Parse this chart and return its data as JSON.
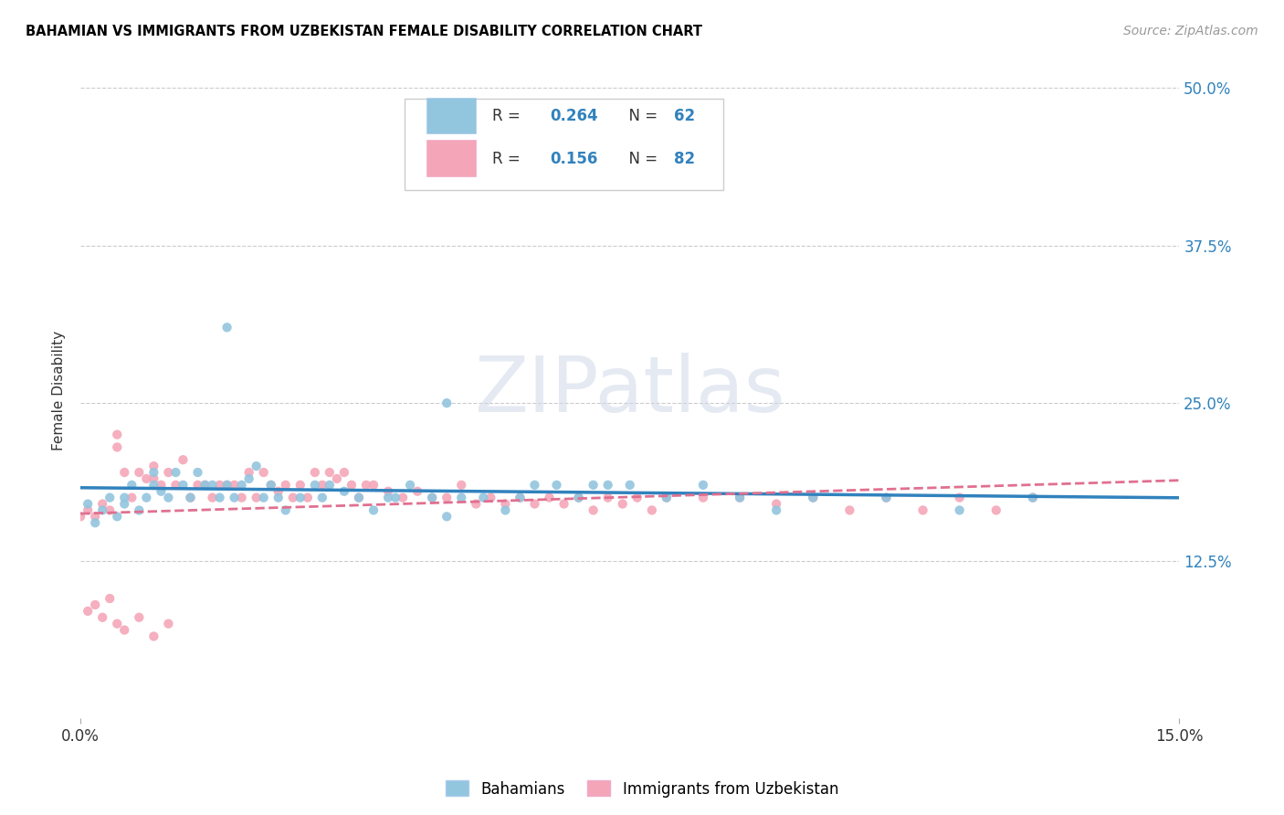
{
  "title": "BAHAMIAN VS IMMIGRANTS FROM UZBEKISTAN FEMALE DISABILITY CORRELATION CHART",
  "source": "Source: ZipAtlas.com",
  "ylabel_label": "Female Disability",
  "xlim": [
    0.0,
    0.15
  ],
  "ylim": [
    0.0,
    0.52
  ],
  "color_blue": "#92c5de",
  "color_pink": "#f4a6b8",
  "color_blue_line": "#3182bd",
  "color_pink_line": "#e07090",
  "watermark": "ZIPatlas",
  "bahamians_x": [
    0.001,
    0.002,
    0.003,
    0.004,
    0.005,
    0.006,
    0.006,
    0.007,
    0.008,
    0.009,
    0.01,
    0.01,
    0.011,
    0.012,
    0.013,
    0.014,
    0.015,
    0.016,
    0.017,
    0.018,
    0.019,
    0.02,
    0.021,
    0.022,
    0.023,
    0.024,
    0.025,
    0.026,
    0.027,
    0.028,
    0.03,
    0.032,
    0.033,
    0.034,
    0.036,
    0.038,
    0.04,
    0.042,
    0.043,
    0.045,
    0.048,
    0.05,
    0.052,
    0.055,
    0.058,
    0.06,
    0.062,
    0.065,
    0.068,
    0.07,
    0.072,
    0.075,
    0.08,
    0.085,
    0.09,
    0.095,
    0.1,
    0.11,
    0.12,
    0.13,
    0.05,
    0.02
  ],
  "bahamians_y": [
    0.17,
    0.155,
    0.165,
    0.175,
    0.16,
    0.17,
    0.175,
    0.185,
    0.165,
    0.175,
    0.195,
    0.185,
    0.18,
    0.175,
    0.195,
    0.185,
    0.175,
    0.195,
    0.185,
    0.185,
    0.175,
    0.185,
    0.175,
    0.185,
    0.19,
    0.2,
    0.175,
    0.185,
    0.175,
    0.165,
    0.175,
    0.185,
    0.175,
    0.185,
    0.18,
    0.175,
    0.165,
    0.175,
    0.175,
    0.185,
    0.175,
    0.16,
    0.175,
    0.175,
    0.165,
    0.175,
    0.185,
    0.185,
    0.175,
    0.185,
    0.185,
    0.185,
    0.175,
    0.185,
    0.175,
    0.165,
    0.175,
    0.175,
    0.165,
    0.175,
    0.25,
    0.31
  ],
  "uzbekistan_x": [
    0.0,
    0.001,
    0.002,
    0.003,
    0.004,
    0.005,
    0.005,
    0.006,
    0.007,
    0.008,
    0.009,
    0.01,
    0.01,
    0.011,
    0.012,
    0.013,
    0.014,
    0.015,
    0.016,
    0.017,
    0.018,
    0.019,
    0.02,
    0.021,
    0.022,
    0.023,
    0.024,
    0.025,
    0.026,
    0.027,
    0.028,
    0.029,
    0.03,
    0.031,
    0.032,
    0.033,
    0.034,
    0.035,
    0.036,
    0.037,
    0.038,
    0.039,
    0.04,
    0.042,
    0.044,
    0.046,
    0.048,
    0.05,
    0.052,
    0.054,
    0.056,
    0.058,
    0.06,
    0.062,
    0.064,
    0.066,
    0.068,
    0.07,
    0.072,
    0.074,
    0.076,
    0.078,
    0.08,
    0.085,
    0.09,
    0.095,
    0.1,
    0.105,
    0.11,
    0.115,
    0.12,
    0.125,
    0.13,
    0.001,
    0.002,
    0.003,
    0.004,
    0.005,
    0.006,
    0.008,
    0.01,
    0.012
  ],
  "uzbekistan_y": [
    0.16,
    0.165,
    0.16,
    0.17,
    0.165,
    0.215,
    0.225,
    0.195,
    0.175,
    0.195,
    0.19,
    0.2,
    0.19,
    0.185,
    0.195,
    0.185,
    0.205,
    0.175,
    0.185,
    0.185,
    0.175,
    0.185,
    0.185,
    0.185,
    0.175,
    0.195,
    0.175,
    0.195,
    0.185,
    0.18,
    0.185,
    0.175,
    0.185,
    0.175,
    0.195,
    0.185,
    0.195,
    0.19,
    0.195,
    0.185,
    0.175,
    0.185,
    0.185,
    0.18,
    0.175,
    0.18,
    0.175,
    0.175,
    0.185,
    0.17,
    0.175,
    0.17,
    0.175,
    0.17,
    0.175,
    0.17,
    0.175,
    0.165,
    0.175,
    0.17,
    0.175,
    0.165,
    0.175,
    0.175,
    0.175,
    0.17,
    0.175,
    0.165,
    0.175,
    0.165,
    0.175,
    0.165,
    0.175,
    0.085,
    0.09,
    0.08,
    0.095,
    0.075,
    0.07,
    0.08,
    0.065,
    0.075
  ]
}
